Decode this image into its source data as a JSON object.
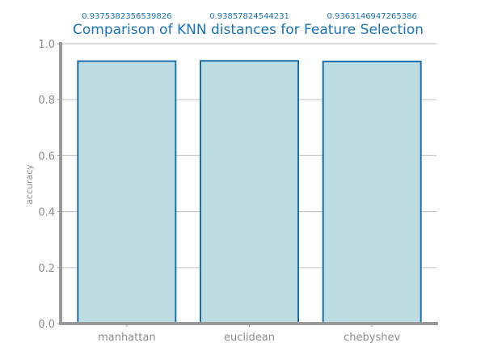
{
  "chart_data": {
    "type": "bar",
    "title": "Comparison of KNN distances for Feature Selection",
    "xlabel": "",
    "ylabel": "accuracy",
    "categories": [
      "manhattan",
      "euclidean",
      "chebyshev"
    ],
    "values": [
      0.9375382356539826,
      0.93857824544231,
      0.9363146947265386
    ],
    "data_labels": [
      "0.9375382356539826",
      "0.93857824544231",
      "0.9363146947265386"
    ],
    "ylim": [
      0,
      1.0
    ],
    "yticks": [
      0.0,
      0.2,
      0.4,
      0.6,
      0.8,
      1.0
    ],
    "ytick_labels": [
      "0.0",
      "0.2",
      "0.4",
      "0.6",
      "0.8",
      "1.0"
    ],
    "grid": "horizontal",
    "colors": {
      "bar_fill": "#bedde2",
      "bar_edge": "#1a6fae",
      "title": "#1a73b5",
      "grid": "#c8c8c8",
      "axis": "#999999",
      "tick_text": "#8c8c8c"
    }
  }
}
